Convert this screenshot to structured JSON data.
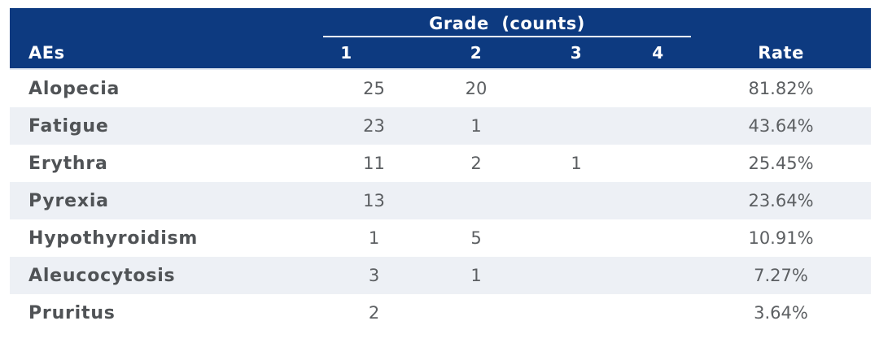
{
  "colors": {
    "header_bg": "#0d3a80",
    "header_text": "#ffffff",
    "row_alt_bg": "#edf0f5",
    "label_text": "#505356",
    "value_text": "#5c5f62"
  },
  "table": {
    "group_header": "Grade  (counts)",
    "col_aes": "AEs",
    "grade_cols": [
      "1",
      "2",
      "3",
      "4"
    ],
    "col_rate": "Rate",
    "rows": [
      {
        "ae": "Alopecia",
        "grades": [
          "25",
          "20",
          "",
          ""
        ],
        "rate": "81.82%"
      },
      {
        "ae": "Fatigue",
        "grades": [
          "23",
          "1",
          "",
          ""
        ],
        "rate": "43.64%"
      },
      {
        "ae": "Erythra",
        "grades": [
          "11",
          "2",
          "1",
          ""
        ],
        "rate": "25.45%"
      },
      {
        "ae": "Pyrexia",
        "grades": [
          "13",
          "",
          "",
          ""
        ],
        "rate": "23.64%"
      },
      {
        "ae": "Hypothyroidism",
        "grades": [
          "1",
          "5",
          "",
          ""
        ],
        "rate": "10.91%"
      },
      {
        "ae": "Aleucocytosis",
        "grades": [
          "3",
          "1",
          "",
          ""
        ],
        "rate": "7.27%"
      },
      {
        "ae": "Pruritus",
        "grades": [
          "2",
          "",
          "",
          ""
        ],
        "rate": "3.64%"
      }
    ]
  },
  "chart_data": {
    "type": "table",
    "title": "",
    "column_group": {
      "label": "Grade  (counts)",
      "spans": [
        "1",
        "2",
        "3",
        "4"
      ]
    },
    "columns": [
      "AEs",
      "Grade 1",
      "Grade 2",
      "Grade 3",
      "Grade 4",
      "Rate"
    ],
    "rows": [
      [
        "Alopecia",
        25,
        20,
        null,
        null,
        "81.82%"
      ],
      [
        "Fatigue",
        23,
        1,
        null,
        null,
        "43.64%"
      ],
      [
        "Erythra",
        11,
        2,
        1,
        null,
        "25.45%"
      ],
      [
        "Pyrexia",
        13,
        null,
        null,
        null,
        "23.64%"
      ],
      [
        "Hypothyroidism",
        1,
        5,
        null,
        null,
        "10.91%"
      ],
      [
        "Aleucocytosis",
        3,
        1,
        null,
        null,
        "7.27%"
      ],
      [
        "Pruritus",
        2,
        null,
        null,
        null,
        "3.64%"
      ]
    ],
    "layout_hints": {
      "header_background": "#0d3a80",
      "alternating_row_background": "#edf0f5",
      "grade_group_underline": true,
      "rate_alignment": "center",
      "counts_alignment": "center"
    }
  }
}
